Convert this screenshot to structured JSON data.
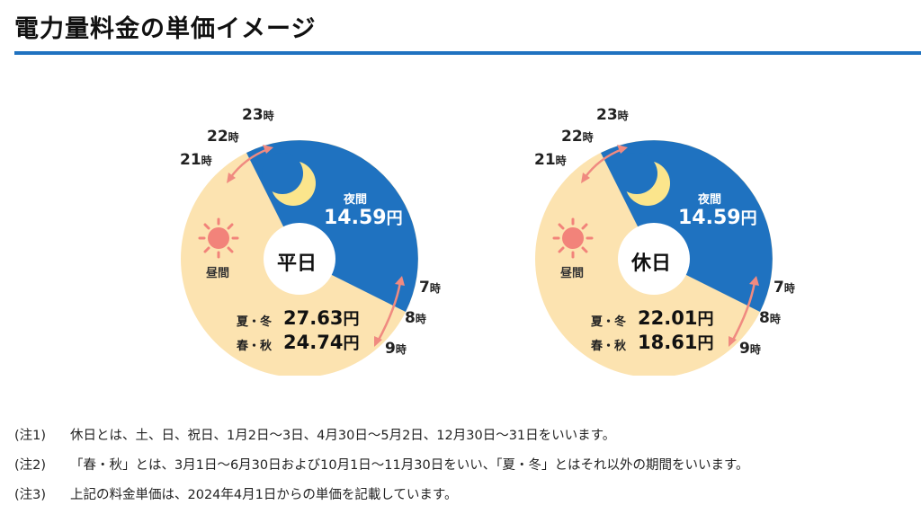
{
  "title": "電力量料金の単価イメージ",
  "hour_unit": "時",
  "hours": {
    "h21": "21",
    "h22": "22",
    "h23": "23",
    "h7": "7",
    "h8": "8",
    "h9": "9"
  },
  "yen_unit": "円",
  "dials": [
    {
      "center_label": "平日",
      "night_label": "夜間",
      "night_price": "14.59",
      "day_label": "昼間",
      "summer_winter_label": "夏・冬",
      "summer_winter_price": "27.63",
      "spring_autumn_label": "春・秋",
      "spring_autumn_price": "24.74"
    },
    {
      "center_label": "休日",
      "night_label": "夜間",
      "night_price": "14.59",
      "day_label": "昼間",
      "summer_winter_label": "夏・冬",
      "summer_winter_price": "22.01",
      "spring_autumn_label": "春・秋",
      "spring_autumn_price": "18.61"
    }
  ],
  "colors": {
    "night": "#1f72c0",
    "day": "#fce3b0",
    "sun": "#f2837a",
    "moon": "#fbe58c",
    "arrow": "#f08a80"
  },
  "icons": [
    "moon-icon",
    "sun-icon",
    "double-arrow-icon"
  ],
  "notes": [
    {
      "mark": "(注1)",
      "text": "休日とは、土、日、祝日、1月2日〜3日、4月30日〜5月2日、12月30日〜31日をいいます。"
    },
    {
      "mark": "(注2)",
      "text": "「春・秋」とは、3月1日〜6月30日および10月1日〜11月30日をいい、「夏・冬」とはそれ以外の期間をいいます。"
    },
    {
      "mark": "(注3)",
      "text": "上記の料金単価は、2024年4月1日からの単価を記載しています。"
    }
  ]
}
